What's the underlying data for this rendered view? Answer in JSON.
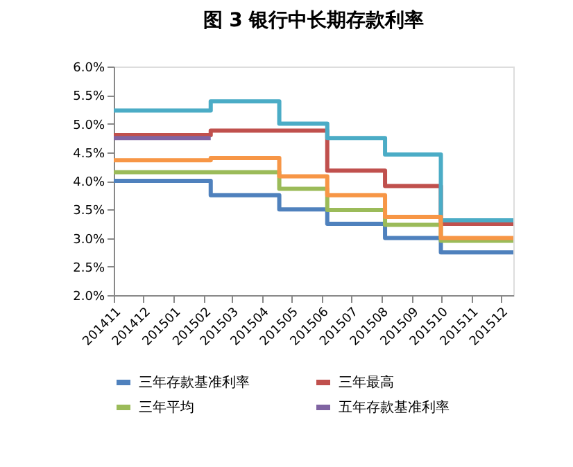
{
  "chart_data": {
    "type": "step",
    "title": "图 3 银行中长期存款利率",
    "x": [
      "2014-11-01",
      "2015-02-08",
      "2015-04-19",
      "2015-06-07",
      "2015-08-05",
      "2015-10-01",
      "2015-12-14"
    ],
    "series": [
      {
        "name": "三年存款基准利率",
        "color": "#4f81bd",
        "values": [
          4.0,
          3.75,
          3.5,
          3.25,
          3.0,
          2.75,
          2.75
        ]
      },
      {
        "name": "三年最高",
        "color": "#c0504d",
        "values": [
          4.8,
          4.88,
          4.88,
          4.18,
          3.91,
          3.25,
          3.25
        ]
      },
      {
        "name": "三年平均",
        "color": "#9bbb59",
        "values": [
          4.15,
          4.15,
          3.86,
          3.49,
          3.23,
          2.95,
          2.95
        ]
      },
      {
        "name": "五年存款基准利率",
        "color": "#8064a2",
        "values": [
          4.75,
          4.75,
          null,
          null,
          null,
          null,
          null
        ]
      },
      {
        "color": "#4bacc6",
        "values": [
          5.23,
          5.39,
          5.0,
          4.75,
          4.46,
          3.31,
          3.31
        ]
      },
      {
        "color": "#f79646",
        "values": [
          4.36,
          4.4,
          4.08,
          3.75,
          3.37,
          3.0,
          3.0
        ]
      }
    ],
    "xlim": [
      "2014-11-01",
      "2015-12-14"
    ],
    "xticks": [
      {
        "value": "2014-11-01",
        "label": "201411"
      },
      {
        "value": "2014-12-01",
        "label": "201412"
      },
      {
        "value": "2015-01-01",
        "label": "201501"
      },
      {
        "value": "2015-02-01",
        "label": "201502"
      },
      {
        "value": "2015-03-01",
        "label": "201503"
      },
      {
        "value": "2015-04-01",
        "label": "201504"
      },
      {
        "value": "2015-05-01",
        "label": "201505"
      },
      {
        "value": "2015-06-01",
        "label": "201506"
      },
      {
        "value": "2015-07-01",
        "label": "201507"
      },
      {
        "value": "2015-08-01",
        "label": "201508"
      },
      {
        "value": "2015-09-01",
        "label": "201509"
      },
      {
        "value": "2015-10-01",
        "label": "201510"
      },
      {
        "value": "2015-11-01",
        "label": "201511"
      },
      {
        "value": "2015-12-01",
        "label": "201512"
      }
    ],
    "ylim": [
      2,
      6
    ],
    "yticks": [
      {
        "value": 2,
        "label": "2.0%"
      },
      {
        "value": 2.5,
        "label": "2.5%"
      },
      {
        "value": 3,
        "label": "3.0%"
      },
      {
        "value": 3.5,
        "label": "3.5%"
      },
      {
        "value": 4,
        "label": "4.0%"
      },
      {
        "value": 4.5,
        "label": "4.5%"
      },
      {
        "value": 5,
        "label": "5.0%"
      },
      {
        "value": 5.5,
        "label": "5.5%"
      },
      {
        "value": 6,
        "label": "6.0%"
      }
    ],
    "grid": false,
    "legend": "bottom",
    "line_style": "solid",
    "marker": "none"
  }
}
